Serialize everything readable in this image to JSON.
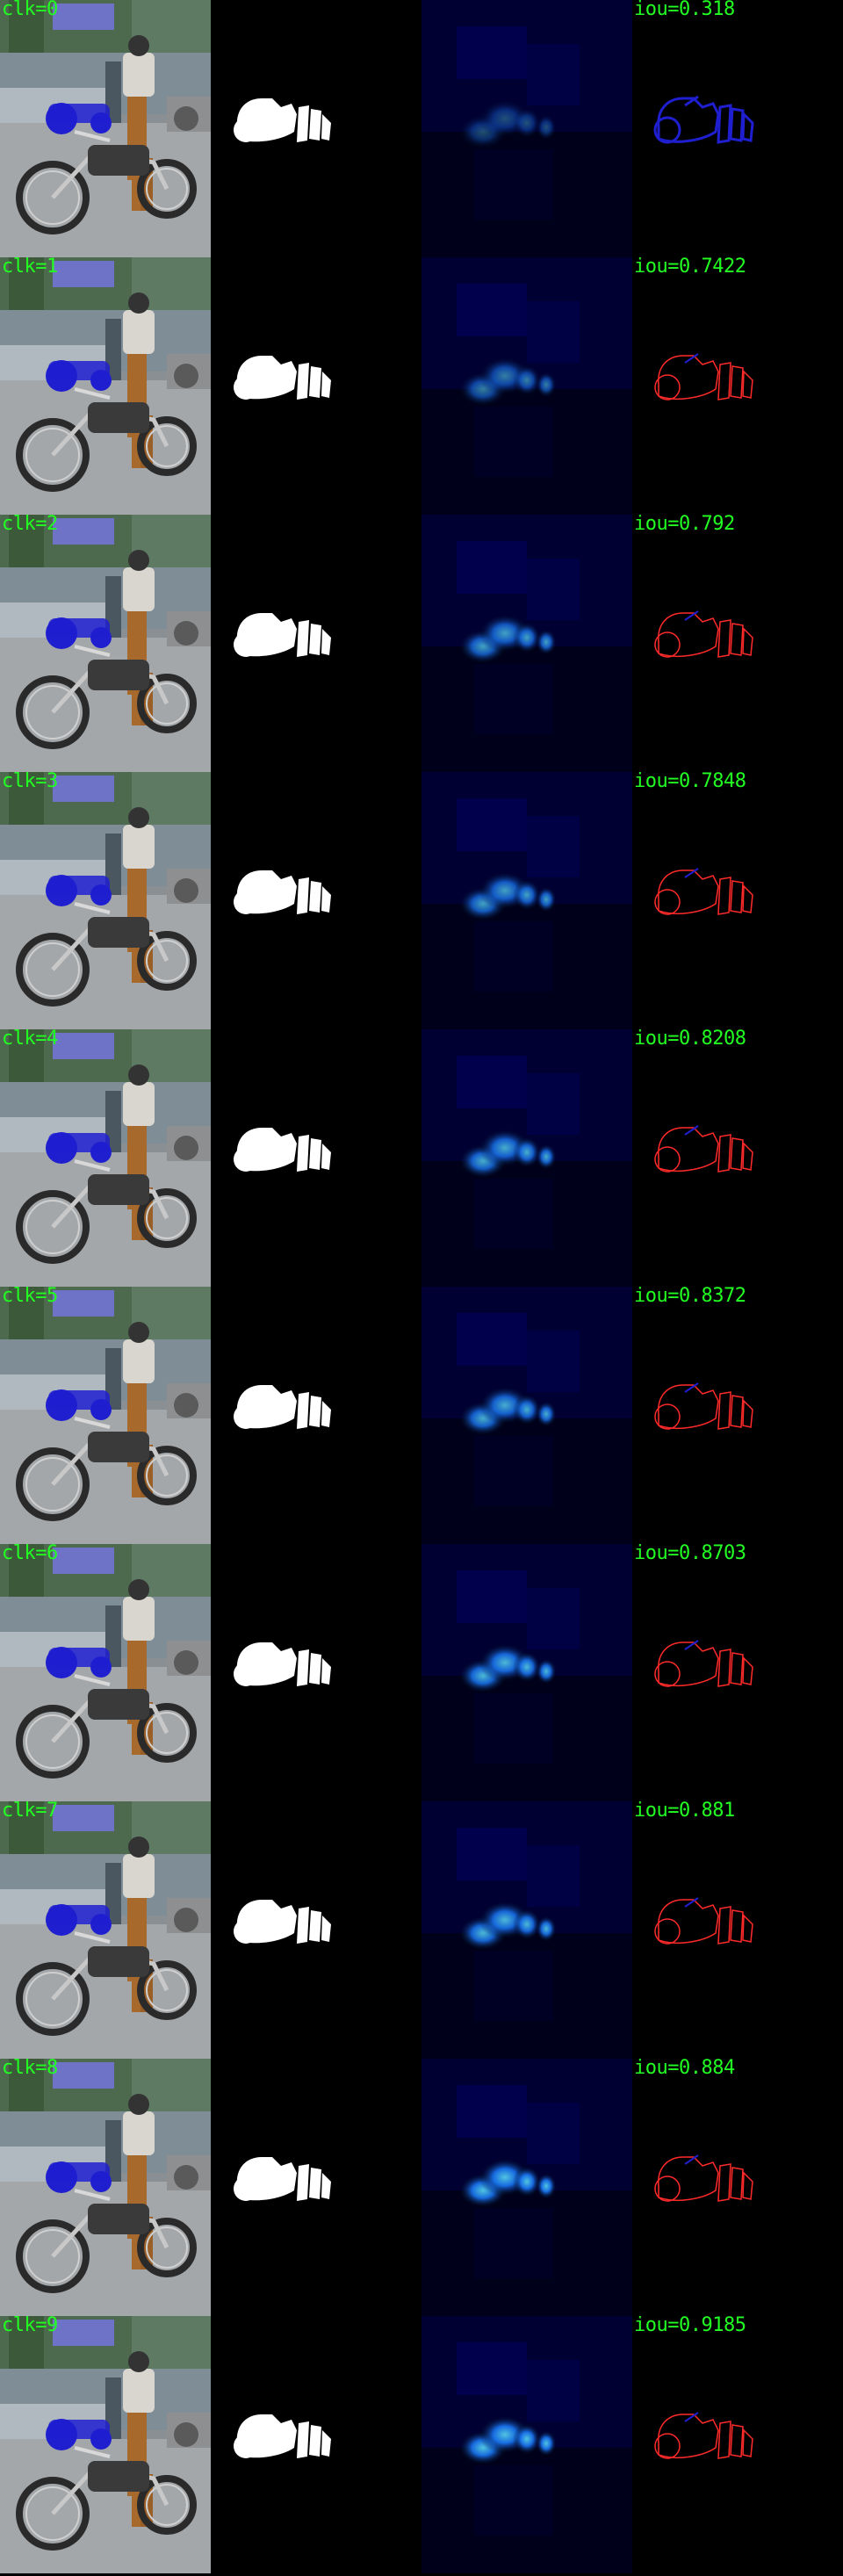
{
  "rows": [
    {
      "click_label": "clk=0",
      "iou_label": "iou=0.318",
      "heat": 0.35
    },
    {
      "click_label": "clk=1",
      "iou_label": "iou=0.7422",
      "heat": 0.55
    },
    {
      "click_label": "clk=2",
      "iou_label": "iou=0.792",
      "heat": 0.7
    },
    {
      "click_label": "clk=3",
      "iou_label": "iou=0.7848",
      "heat": 0.7
    },
    {
      "click_label": "clk=4",
      "iou_label": "iou=0.8208",
      "heat": 0.75
    },
    {
      "click_label": "clk=5",
      "iou_label": "iou=0.8372",
      "heat": 0.75
    },
    {
      "click_label": "clk=6",
      "iou_label": "iou=0.8703",
      "heat": 0.8
    },
    {
      "click_label": "clk=7",
      "iou_label": "iou=0.881",
      "heat": 0.8
    },
    {
      "click_label": "clk=8",
      "iou_label": "iou=0.884",
      "heat": 0.85
    },
    {
      "click_label": "clk=9",
      "iou_label": "iou=0.9185",
      "heat": 0.85
    }
  ],
  "colors": {
    "label_green": "#22ff22",
    "mask_white": "#ffffff",
    "overlay_blue": "#1f1fd0",
    "heat_cyan": "#5fe6ff",
    "error_red": "#ff2a2a"
  }
}
